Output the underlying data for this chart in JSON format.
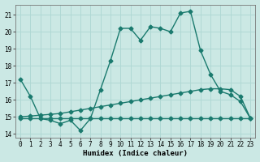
{
  "xlabel": "Humidex (Indice chaleur)",
  "background_color": "#cbe8e4",
  "grid_color": "#b0d8d4",
  "line_color": "#1a7a6e",
  "xlim": [
    -0.5,
    23.5
  ],
  "ylim": [
    13.8,
    21.6
  ],
  "yticks": [
    14,
    15,
    16,
    17,
    18,
    19,
    20,
    21
  ],
  "xticks": [
    0,
    1,
    2,
    3,
    4,
    5,
    6,
    7,
    8,
    9,
    10,
    11,
    12,
    13,
    14,
    15,
    16,
    17,
    18,
    19,
    20,
    21,
    22,
    23
  ],
  "line1_x": [
    0,
    1,
    2,
    3,
    4,
    5,
    6,
    7,
    8,
    9,
    10,
    11,
    12,
    13,
    14,
    15,
    16,
    17,
    18,
    19,
    20,
    21,
    22,
    23
  ],
  "line1_y": [
    17.2,
    16.2,
    14.9,
    14.8,
    14.6,
    14.8,
    14.2,
    14.9,
    16.6,
    18.3,
    20.2,
    20.2,
    19.5,
    20.3,
    20.2,
    20.0,
    21.1,
    21.2,
    18.9,
    17.5,
    16.5,
    16.3,
    15.9,
    14.9
  ],
  "line2_x": [
    0,
    1,
    2,
    3,
    4,
    5,
    6,
    7,
    8,
    9,
    10,
    11,
    12,
    13,
    14,
    15,
    16,
    17,
    18,
    19,
    20,
    21,
    22,
    23
  ],
  "line2_y": [
    15.0,
    15.05,
    15.1,
    15.15,
    15.2,
    15.3,
    15.4,
    15.5,
    15.6,
    15.7,
    15.8,
    15.9,
    16.0,
    16.1,
    16.2,
    16.3,
    16.4,
    16.5,
    16.6,
    16.65,
    16.65,
    16.6,
    16.2,
    14.9
  ],
  "line3_x": [
    0,
    1,
    2,
    3,
    4,
    5,
    6,
    7,
    8,
    9,
    10,
    11,
    12,
    13,
    14,
    15,
    16,
    17,
    18,
    19,
    20,
    21,
    22,
    23
  ],
  "line3_y": [
    14.9,
    14.9,
    14.9,
    14.9,
    14.9,
    14.9,
    14.9,
    14.9,
    14.9,
    14.9,
    14.9,
    14.9,
    14.9,
    14.9,
    14.9,
    14.9,
    14.9,
    14.9,
    14.9,
    14.9,
    14.9,
    14.9,
    14.9,
    14.9
  ]
}
